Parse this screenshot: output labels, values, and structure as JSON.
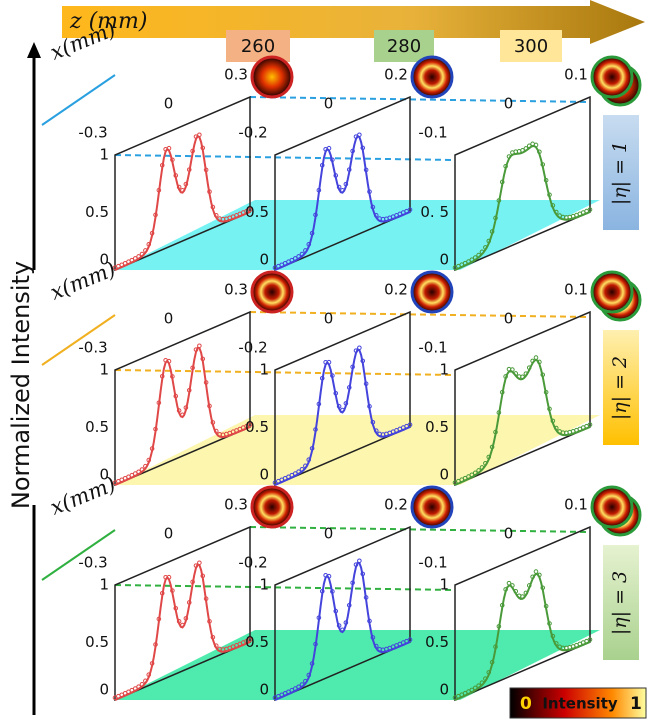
{
  "header": {
    "axis_label": "z (mm)",
    "positions": [
      "260",
      "280",
      "300"
    ]
  },
  "y_axis_label": "Normalized Intensity",
  "rows": [
    {
      "x_label": "x(mm)",
      "label": "|η| = 1",
      "panels": [
        {
          "x_ticks": [
            "0.3",
            "0",
            "-0.3"
          ],
          "y_ticks": [
            "1",
            "0.5",
            "0"
          ]
        },
        {
          "x_ticks": [
            "0.2",
            "0",
            "-0.2"
          ],
          "y_ticks": [
            "0.5",
            "0"
          ]
        },
        {
          "x_ticks": [
            "0.1",
            "0",
            "-0.1"
          ],
          "y_ticks": [
            "0. 5",
            "0"
          ]
        }
      ]
    },
    {
      "x_label": "x(mm)",
      "label": "|η| = 2",
      "panels": [
        {
          "x_ticks": [
            "0.3",
            "0",
            "-0.3"
          ],
          "y_ticks": [
            "1",
            "0.5",
            "0"
          ]
        },
        {
          "x_ticks": [
            "0.2",
            "0",
            "-0.2"
          ],
          "y_ticks": [
            "1",
            "0.5",
            "0"
          ]
        },
        {
          "x_ticks": [
            "0.1",
            "0",
            "-0.1"
          ],
          "y_ticks": [
            "1",
            "0.5",
            "0"
          ]
        }
      ]
    },
    {
      "x_label": "x(mm)",
      "label": "|η| = 3",
      "panels": [
        {
          "x_ticks": [
            "0.3",
            "0",
            "-0.3"
          ],
          "y_ticks": [
            "1",
            "0.5",
            "0"
          ]
        },
        {
          "x_ticks": [
            "0.2",
            "0",
            "-0.2"
          ],
          "y_ticks": [
            "1",
            "0.5",
            "0"
          ]
        },
        {
          "x_ticks": [
            "0.1",
            "0",
            "-0.1"
          ],
          "y_ticks": [
            "1",
            "0.5",
            "0"
          ]
        }
      ]
    }
  ],
  "colorbar": {
    "min": "0",
    "label": "Intensity",
    "max": "1"
  }
}
